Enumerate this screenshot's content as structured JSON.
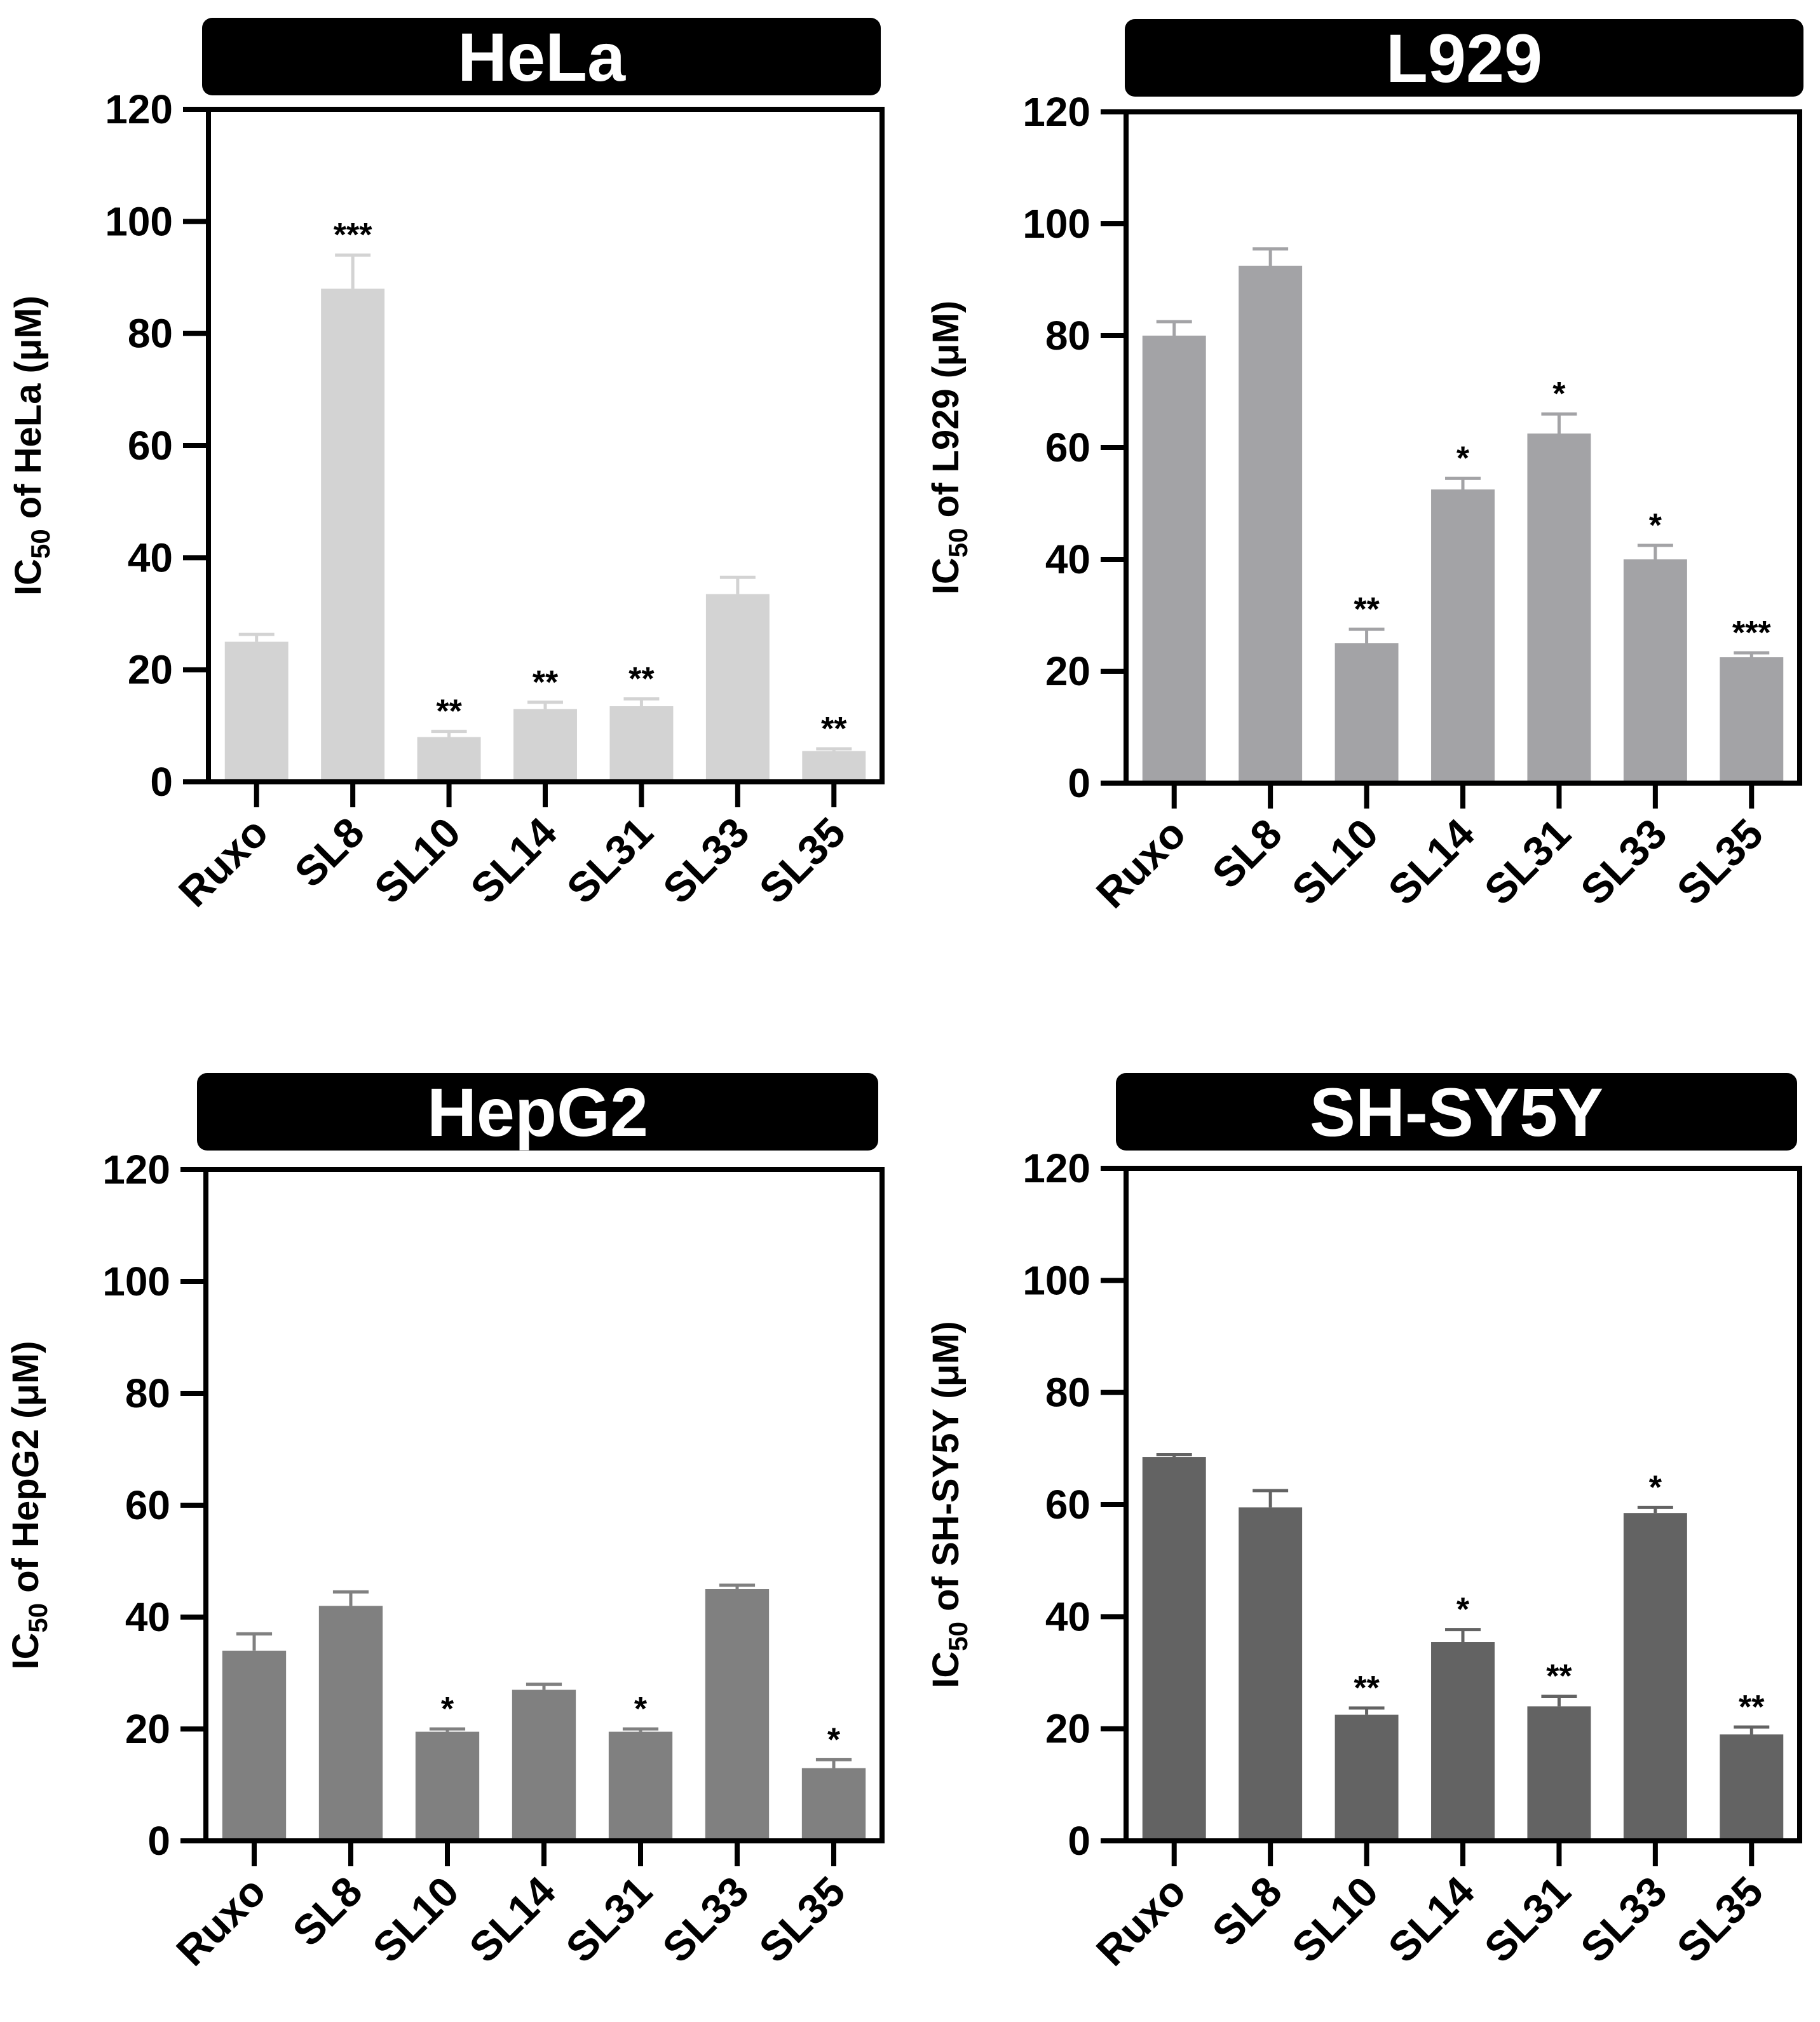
{
  "chart_data": [
    {
      "type": "bar",
      "title": "HeLa",
      "ylabel_prefix": "IC",
      "ylabel_sub": "50",
      "ylabel_suffix": " of HeLa (μM)",
      "xlabel": "",
      "ylim": [
        0,
        120
      ],
      "yticks": [
        0,
        20,
        40,
        60,
        80,
        100,
        120
      ],
      "categories": [
        "Ruxo",
        "SL8",
        "SL10",
        "SL14",
        "SL31",
        "SL33",
        "SL35"
      ],
      "values": [
        25,
        88,
        8,
        13,
        13.5,
        33.5,
        5.5
      ],
      "errors": [
        1.3,
        6,
        1,
        1.2,
        1.3,
        3,
        0.4
      ],
      "significance": [
        "",
        "***",
        "**",
        "**",
        "**",
        "",
        "**"
      ],
      "color": "#d3d3d3"
    },
    {
      "type": "bar",
      "title": "L929",
      "ylabel_prefix": "IC",
      "ylabel_sub": "50",
      "ylabel_suffix": " of L929 (μM)",
      "xlabel": "",
      "ylim": [
        0,
        120
      ],
      "yticks": [
        0,
        20,
        40,
        60,
        80,
        100,
        120
      ],
      "categories": [
        "Ruxo",
        "SL8",
        "SL10",
        "SL14",
        "SL31",
        "SL33",
        "SL35"
      ],
      "values": [
        80,
        92.5,
        25,
        52.5,
        62.5,
        40,
        22.5
      ],
      "errors": [
        2.5,
        3,
        2.5,
        2,
        3.5,
        2.5,
        0.8
      ],
      "significance": [
        "",
        "",
        "**",
        "*",
        "*",
        "*",
        "***"
      ],
      "color": "#a3a3a6"
    },
    {
      "type": "bar",
      "title": "HepG2",
      "ylabel_prefix": "IC",
      "ylabel_sub": "50",
      "ylabel_suffix": " of HepG2 (μM)",
      "xlabel": "",
      "ylim": [
        0,
        120
      ],
      "yticks": [
        0,
        20,
        40,
        60,
        80,
        100,
        120
      ],
      "categories": [
        "Ruxo",
        "SL8",
        "SL10",
        "SL14",
        "SL31",
        "SL33",
        "SL35"
      ],
      "values": [
        34,
        42,
        19.5,
        27,
        19.5,
        45,
        13
      ],
      "errors": [
        3,
        2.5,
        0.5,
        1,
        0.5,
        0.7,
        1.5
      ],
      "significance": [
        "",
        "",
        "*",
        "",
        "*",
        "",
        "*"
      ],
      "color": "#808080"
    },
    {
      "type": "bar",
      "title": "SH-SY5Y",
      "ylabel_prefix": "IC",
      "ylabel_sub": "50",
      "ylabel_suffix": " of SH-SY5Y (μM)",
      "xlabel": "",
      "ylim": [
        0,
        120
      ],
      "yticks": [
        0,
        20,
        40,
        60,
        80,
        100,
        120
      ],
      "categories": [
        "Ruxo",
        "SL8",
        "SL10",
        "SL14",
        "SL31",
        "SL33",
        "SL35"
      ],
      "values": [
        68.5,
        59.5,
        22.5,
        35.5,
        24,
        58.5,
        19
      ],
      "errors": [
        0.4,
        3,
        1.2,
        2.2,
        1.8,
        1,
        1.3
      ],
      "significance": [
        "",
        "",
        "**",
        "*",
        "**",
        "*",
        "**"
      ],
      "color": "#636363"
    }
  ]
}
